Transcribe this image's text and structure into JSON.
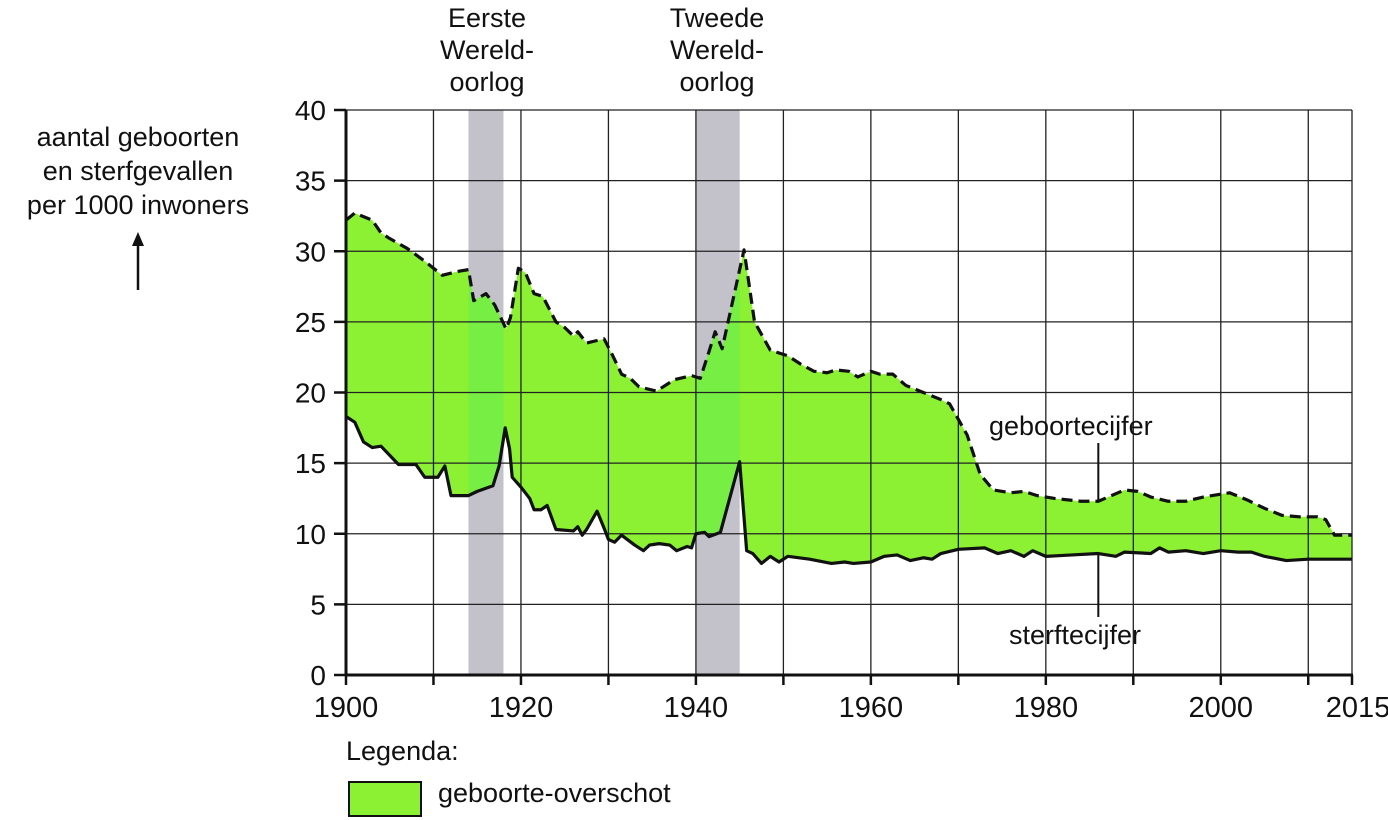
{
  "chart_data": {
    "type": "area",
    "title": "",
    "ylabel": [
      "aantal geboorten",
      "en sterfgevallen",
      "per 1000 inwoners"
    ],
    "ylabel_arrow": "↑",
    "xlabel": "",
    "xlim": [
      1900,
      2015
    ],
    "ylim": [
      0,
      40
    ],
    "x_ticks": [
      1900,
      1910,
      1920,
      1930,
      1940,
      1950,
      1960,
      1970,
      1980,
      1990,
      2000,
      2010,
      2015
    ],
    "x_tick_labels": [
      "1900",
      "1920",
      "1940",
      "1960",
      "1980",
      "2000",
      "2015"
    ],
    "y_ticks": [
      0,
      5,
      10,
      15,
      20,
      25,
      30,
      35,
      40
    ],
    "grid": true,
    "shaded_periods": [
      {
        "label": [
          "Eerste",
          "Wereld-",
          "oorlog"
        ],
        "start": 1914,
        "end": 1918,
        "color": "#c3c1ca"
      },
      {
        "label": [
          "Tweede",
          "Wereld-",
          "oorlog"
        ],
        "start": 1940,
        "end": 1945,
        "color": "#c3c1ca"
      }
    ],
    "series": [
      {
        "name": "geboortecijfer",
        "style": "dashed",
        "points": [
          [
            1900,
            32.2
          ],
          [
            1901,
            32.7
          ],
          [
            1903,
            32.2
          ],
          [
            1904,
            31.3
          ],
          [
            1905,
            30.9
          ],
          [
            1907,
            30.2
          ],
          [
            1909,
            29.3
          ],
          [
            1911,
            28.3
          ],
          [
            1913,
            28.6
          ],
          [
            1914,
            28.7
          ],
          [
            1914.6,
            26.5
          ],
          [
            1916,
            27.0
          ],
          [
            1917,
            26.2
          ],
          [
            1918.3,
            24.5
          ],
          [
            1918.8,
            25.3
          ],
          [
            1919.7,
            28.8
          ],
          [
            1920.5,
            28.5
          ],
          [
            1921.5,
            27.0
          ],
          [
            1922.5,
            26.8
          ],
          [
            1924,
            25.0
          ],
          [
            1925,
            24.6
          ],
          [
            1926,
            24.0
          ],
          [
            1926.5,
            24.3
          ],
          [
            1927.5,
            23.5
          ],
          [
            1929.5,
            23.8
          ],
          [
            1930.5,
            22.6
          ],
          [
            1931.5,
            21.3
          ],
          [
            1932.5,
            21.0
          ],
          [
            1933.5,
            20.4
          ],
          [
            1935.5,
            20.1
          ],
          [
            1937.5,
            20.9
          ],
          [
            1939.5,
            21.2
          ],
          [
            1940.5,
            21.0
          ],
          [
            1941.5,
            22.9
          ],
          [
            1942.2,
            24.3
          ],
          [
            1943,
            23.1
          ],
          [
            1945.5,
            30.1
          ],
          [
            1946.7,
            25.0
          ],
          [
            1948.5,
            23.0
          ],
          [
            1950.5,
            22.6
          ],
          [
            1952,
            22.0
          ],
          [
            1953.5,
            21.5
          ],
          [
            1955,
            21.4
          ],
          [
            1956,
            21.6
          ],
          [
            1957.5,
            21.5
          ],
          [
            1958.5,
            21.1
          ],
          [
            1960,
            21.5
          ],
          [
            1961,
            21.3
          ],
          [
            1962.5,
            21.3
          ],
          [
            1964,
            20.5
          ],
          [
            1966,
            20.0
          ],
          [
            1968,
            19.5
          ],
          [
            1969,
            19.2
          ],
          [
            1971,
            17.0
          ],
          [
            1972.5,
            14.2
          ],
          [
            1974,
            13.1
          ],
          [
            1976,
            12.9
          ],
          [
            1977.5,
            13.0
          ],
          [
            1979,
            12.7
          ],
          [
            1981,
            12.5
          ],
          [
            1984,
            12.3
          ],
          [
            1986,
            12.3
          ],
          [
            1987.5,
            12.7
          ],
          [
            1989,
            13.1
          ],
          [
            1990.5,
            13.0
          ],
          [
            1992,
            12.6
          ],
          [
            1994,
            12.3
          ],
          [
            1996,
            12.3
          ],
          [
            1998,
            12.6
          ],
          [
            2000,
            12.8
          ],
          [
            2001,
            12.9
          ],
          [
            2003,
            12.4
          ],
          [
            2005,
            11.8
          ],
          [
            2007,
            11.3
          ],
          [
            2009,
            11.2
          ],
          [
            2011,
            11.2
          ],
          [
            2012,
            11.0
          ],
          [
            2013,
            9.9
          ],
          [
            2015,
            9.9
          ]
        ]
      },
      {
        "name": "sterftecijfer",
        "style": "solid",
        "points": [
          [
            1900,
            18.3
          ],
          [
            1901,
            17.9
          ],
          [
            1902,
            16.5
          ],
          [
            1903,
            16.1
          ],
          [
            1904,
            16.2
          ],
          [
            1906,
            14.9
          ],
          [
            1908,
            14.9
          ],
          [
            1909,
            14.0
          ],
          [
            1910.5,
            14.0
          ],
          [
            1911.3,
            14.8
          ],
          [
            1912,
            12.7
          ],
          [
            1914,
            12.7
          ],
          [
            1915,
            13.0
          ],
          [
            1916.8,
            13.4
          ],
          [
            1917.5,
            14.8
          ],
          [
            1918.2,
            17.5
          ],
          [
            1918.7,
            16.0
          ],
          [
            1919,
            14.0
          ],
          [
            1920,
            13.3
          ],
          [
            1921,
            12.5
          ],
          [
            1921.5,
            11.7
          ],
          [
            1922.3,
            11.7
          ],
          [
            1923,
            12.0
          ],
          [
            1924,
            10.3
          ],
          [
            1926,
            10.2
          ],
          [
            1926.5,
            10.5
          ],
          [
            1927,
            9.9
          ],
          [
            1927.5,
            10.3
          ],
          [
            1928.7,
            11.6
          ],
          [
            1929.5,
            10.4
          ],
          [
            1930,
            9.6
          ],
          [
            1930.7,
            9.4
          ],
          [
            1931.5,
            9.9
          ],
          [
            1933,
            9.2
          ],
          [
            1934,
            8.8
          ],
          [
            1934.7,
            9.2
          ],
          [
            1935.8,
            9.3
          ],
          [
            1937,
            9.2
          ],
          [
            1937.8,
            8.8
          ],
          [
            1939,
            9.1
          ],
          [
            1939.5,
            9.0
          ],
          [
            1940,
            10.0
          ],
          [
            1941,
            10.1
          ],
          [
            1941.5,
            9.8
          ],
          [
            1942.8,
            10.1
          ],
          [
            1945,
            15.1
          ],
          [
            1945.8,
            8.8
          ],
          [
            1946.5,
            8.6
          ],
          [
            1947.5,
            7.9
          ],
          [
            1948.5,
            8.4
          ],
          [
            1949.5,
            8.0
          ],
          [
            1950.5,
            8.4
          ],
          [
            1953,
            8.2
          ],
          [
            1955.5,
            7.9
          ],
          [
            1957,
            8.0
          ],
          [
            1958,
            7.9
          ],
          [
            1960,
            8.0
          ],
          [
            1961.5,
            8.4
          ],
          [
            1963,
            8.5
          ],
          [
            1964.5,
            8.1
          ],
          [
            1966,
            8.3
          ],
          [
            1967,
            8.2
          ],
          [
            1968,
            8.6
          ],
          [
            1970,
            8.9
          ],
          [
            1973,
            9.0
          ],
          [
            1974.5,
            8.6
          ],
          [
            1976,
            8.8
          ],
          [
            1977.5,
            8.4
          ],
          [
            1978.5,
            8.8
          ],
          [
            1980,
            8.4
          ],
          [
            1983,
            8.5
          ],
          [
            1986,
            8.6
          ],
          [
            1988,
            8.4
          ],
          [
            1989,
            8.7
          ],
          [
            1992,
            8.6
          ],
          [
            1993,
            9.0
          ],
          [
            1994,
            8.7
          ],
          [
            1996,
            8.8
          ],
          [
            1998,
            8.6
          ],
          [
            2000,
            8.8
          ],
          [
            2002,
            8.7
          ],
          [
            2003.5,
            8.7
          ],
          [
            2005,
            8.4
          ],
          [
            2007.5,
            8.1
          ],
          [
            2010,
            8.2
          ],
          [
            2015,
            8.2
          ]
        ]
      }
    ],
    "fill_between": {
      "upper": "geboortecijfer",
      "lower": "sterftecijfer",
      "color": "#8cf033"
    },
    "annotations": [
      {
        "text": "geboortecijfer",
        "x": 1989,
        "y": 17.5
      },
      {
        "text": "sterftecijfer",
        "x": 1986,
        "y": 3.0
      }
    ],
    "legend": {
      "title": "Legenda:",
      "entries": [
        {
          "label": "geboorte-overschot",
          "color": "#8cf033"
        }
      ],
      "position": "bottom-left"
    }
  },
  "labels": {
    "y_axis": [
      "aantal geboorten",
      "en sterfgevallen",
      "per 1000 inwoners"
    ],
    "war1": [
      "Eerste",
      "Wereld-",
      "oorlog"
    ],
    "war2": [
      "Tweede",
      "Wereld-",
      "oorlog"
    ],
    "birth_rate": "geboortecijfer",
    "death_rate": "sterftecijfer",
    "legend_title": "Legenda:",
    "legend_entry": "geboorte-overschot"
  },
  "colors": {
    "fill": "#8cf033",
    "fill_war": "#77ee44",
    "war_band": "#c3c1ca",
    "grid": "#222222",
    "line": "#111111"
  }
}
